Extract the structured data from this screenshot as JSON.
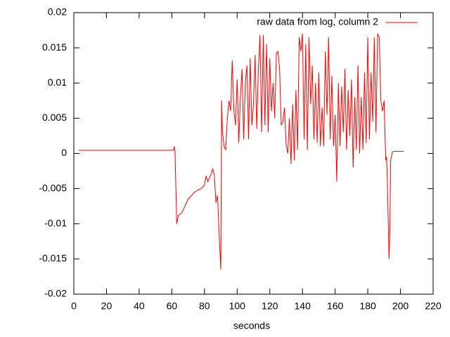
{
  "chart_data": {
    "type": "line",
    "x_label": "seconds",
    "x": [
      3,
      61,
      61.5,
      62,
      62.5,
      63,
      64,
      66,
      68,
      70,
      72,
      74,
      76,
      78,
      80,
      81,
      82,
      83,
      84,
      85,
      86,
      87,
      88,
      89,
      90,
      90.5,
      91,
      92,
      93,
      94,
      95,
      96,
      97,
      98,
      99,
      100,
      101,
      102,
      103,
      104,
      105,
      106,
      107,
      108,
      109,
      110,
      111,
      112,
      113,
      114,
      115,
      116,
      117,
      118,
      119,
      120,
      121,
      122,
      123,
      124,
      125,
      126,
      127,
      128,
      129,
      130,
      131,
      132,
      133,
      134,
      135,
      136,
      137,
      138,
      139,
      140,
      141,
      142,
      143,
      144,
      145,
      146,
      147,
      148,
      149,
      150,
      151,
      152,
      153,
      154,
      155,
      156,
      157,
      158,
      159,
      160,
      161,
      162,
      163,
      164,
      165,
      166,
      167,
      168,
      169,
      170,
      171,
      172,
      173,
      174,
      175,
      176,
      177,
      178,
      179,
      180,
      181,
      182,
      183,
      184,
      185,
      186,
      187,
      188,
      189,
      190,
      191,
      191.5,
      192,
      192.5,
      193,
      193.5,
      194,
      195,
      196,
      202
    ],
    "series": [
      {
        "name": "raw data from log, column 2",
        "color": "#ff0000",
        "values": [
          0.00045,
          0.00045,
          0.001,
          0.0,
          -0.005,
          -0.01,
          -0.0088,
          -0.0085,
          -0.0075,
          -0.0065,
          -0.006,
          -0.0055,
          -0.0052,
          -0.005,
          -0.0045,
          -0.0032,
          -0.004,
          -0.0035,
          -0.003,
          -0.0022,
          -0.003,
          -0.007,
          -0.006,
          -0.0115,
          -0.0165,
          0.0075,
          0.003,
          0.001,
          0.0005,
          0.005,
          0.0075,
          0.006,
          0.0132,
          0.006,
          0.004,
          0.0105,
          0.0015,
          0.008,
          0.012,
          0.002,
          0.01,
          0.0125,
          0.002,
          0.0135,
          0.004,
          0.007,
          0.014,
          0.0035,
          0.012,
          0.0168,
          0.003,
          0.0168,
          0.004,
          0.0155,
          0.003,
          0.0135,
          0.006,
          0.01,
          0.005,
          0.0142,
          0.0145,
          0.012,
          0.004,
          0.0045,
          0.0065,
          0.0012,
          0.0,
          0.005,
          -0.0015,
          0.007,
          -0.001,
          0.009,
          0.0005,
          0.0165,
          0.0145,
          0.017,
          0.002,
          0.0155,
          0.0005,
          0.0165,
          0.007,
          0.0125,
          0.002,
          0.01,
          0.0015,
          0.0115,
          0.001,
          0.0065,
          0.001,
          0.0145,
          0.0055,
          0.0165,
          0.002,
          0.011,
          0.001,
          0.0055,
          -0.004,
          0.01,
          0.001,
          0.0095,
          0.003,
          0.012,
          0.0005,
          0.009,
          0.0025,
          0.0105,
          -0.002,
          0.008,
          0.0005,
          0.0125,
          0.0,
          0.008,
          0.0005,
          0.0115,
          0.0015,
          0.0165,
          0.002,
          0.0115,
          0.0045,
          0.0165,
          0.003,
          0.017,
          0.0165,
          0.0075,
          0.006,
          0.0075,
          -0.001,
          -0.0005,
          -0.004,
          -0.0095,
          -0.015,
          -0.011,
          -0.001,
          0.0002,
          0.0003,
          0.0003
        ]
      }
    ],
    "xlim": [
      0,
      220
    ],
    "xticks": [
      0,
      20,
      40,
      60,
      80,
      100,
      120,
      140,
      160,
      180,
      200,
      220
    ],
    "ylim": [
      -0.02,
      0.02
    ],
    "yticks": [
      -0.02,
      -0.015,
      -0.01,
      -0.005,
      0,
      0.005,
      0.01,
      0.015,
      0.02
    ],
    "grid": false,
    "legend": "top-right"
  }
}
